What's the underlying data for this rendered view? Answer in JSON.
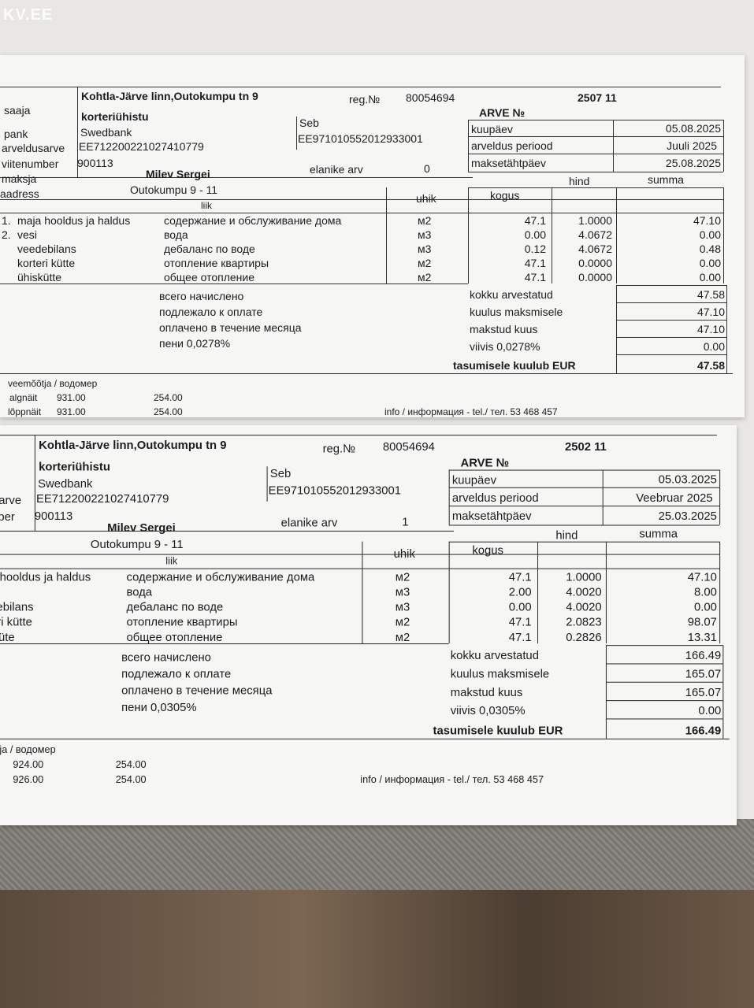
{
  "watermark": "KV.EE",
  "labels": {
    "saaja": "saaja",
    "pank": "pank",
    "arveldusarve": "arveldusarve",
    "viitenumber": "viitenumber",
    "maksja": "maksja",
    "aadress": "aadress",
    "reg": "reg.№",
    "arve": "ARVE №",
    "kuupaev": "kuupäev",
    "periood": "arveldus periood",
    "tahtpaev": "maksetähtpäev",
    "elanike": "elanike arv",
    "liik": "liik",
    "uhik": "uhik",
    "kogus": "kogus",
    "hind": "hind",
    "summa": "summa",
    "ru_total": [
      "всего начислено",
      "подлежало к оплате",
      "оплачено в течение месяца"
    ],
    "et_total": [
      "kokku arvestatud",
      "kuulus maksmisele",
      "makstud kuus"
    ],
    "tasumisele": "tasumisele kuulub EUR",
    "veemootja": "veemõõtja / водомер",
    "algnait": "algnäit",
    "loppnait": "lõppnäit",
    "info": "info / информация - tel./ тел. 53 468 457"
  },
  "invoices": [
    {
      "recipient": "Kohtla-Järve linn,Outokumpu tn 9",
      "recipient2": "korteriühistu",
      "reg_no": "80054694",
      "bank": "Swedbank",
      "account": "EE712200221027410779",
      "bank2": "Seb",
      "account2": "EE971010552012933001",
      "ref": "900113",
      "invoice_no": "2507 11",
      "date": "05.08.2025",
      "period": "Juuli  2025",
      "due": "25.08.2025",
      "payer": "Milev Sergei",
      "residents": "0",
      "address": "Outokumpu 9 - 11",
      "rows": [
        {
          "n": "1.",
          "et": "maja hooldus ja haldus",
          "ru": "содержание и обслуживание дома",
          "unit": "м2",
          "qty": "47.1",
          "price": "1.0000",
          "sum": "47.10"
        },
        {
          "n": "2.",
          "et": "vesi",
          "ru": "вода",
          "unit": "м3",
          "qty": "0.00",
          "price": "4.0672",
          "sum": "0.00"
        },
        {
          "n": "",
          "et": "veedebilans",
          "ru": "дебаланс по воде",
          "unit": "м3",
          "qty": "0.12",
          "price": "4.0672",
          "sum": "0.48"
        },
        {
          "n": "",
          "et": "korteri kütte",
          "ru": "отопление квартиры",
          "unit": "м2",
          "qty": "47.1",
          "price": "0.0000",
          "sum": "0.00"
        },
        {
          "n": "",
          "et": "ühiskütte",
          "ru": "общее отопление",
          "unit": "м2",
          "qty": "47.1",
          "price": "0.0000",
          "sum": "0.00"
        }
      ],
      "peni_ru": "пени 0,0278%",
      "viivis": "viivis 0,0278%",
      "totals": [
        "47.58",
        "47.10",
        "47.10",
        "0.00"
      ],
      "to_pay": "47.58",
      "water": {
        "start": [
          "931.00",
          "254.00"
        ],
        "end": [
          "931.00",
          "254.00"
        ]
      }
    },
    {
      "recipient": "Kohtla-Järve linn,Outokumpu tn 9",
      "recipient2": "korteriühistu",
      "reg_no": "80054694",
      "bank": "Swedbank",
      "account": "EE712200221027410779",
      "bank2": "Seb",
      "account2": "EE971010552012933001",
      "ref": "900113",
      "invoice_no": "2502 11",
      "date": "05.03.2025",
      "period": "Veebruar  2025",
      "due": "25.03.2025",
      "payer": "Milev Sergei",
      "residents": "1",
      "address": "Outokumpu 9 - 11",
      "rows": [
        {
          "n": "",
          "et": "maja hooldus ja haldus",
          "ru": "содержание и обслуживание дома",
          "unit": "м2",
          "qty": "47.1",
          "price": "1.0000",
          "sum": "47.10"
        },
        {
          "n": "",
          "et": "vesi",
          "ru": "вода",
          "unit": "м3",
          "qty": "2.00",
          "price": "4.0020",
          "sum": "8.00"
        },
        {
          "n": "",
          "et": "veedebilans",
          "ru": "дебаланс по воде",
          "unit": "м3",
          "qty": "0.00",
          "price": "4.0020",
          "sum": "0.00"
        },
        {
          "n": "",
          "et": "korteri kütte",
          "ru": "отопление квартиры",
          "unit": "м2",
          "qty": "47.1",
          "price": "2.0823",
          "sum": "98.07"
        },
        {
          "n": "",
          "et": "ühisküte",
          "ru": "общее отопление",
          "unit": "м2",
          "qty": "47.1",
          "price": "0.2826",
          "sum": "13.31"
        }
      ],
      "peni_ru": "пени 0,0305%",
      "viivis": "viivis 0,0305%",
      "totals": [
        "166.49",
        "165.07",
        "165.07",
        "0.00"
      ],
      "to_pay": "166.49",
      "water": {
        "start": [
          "924.00",
          "254.00"
        ],
        "end": [
          "926.00",
          "254.00"
        ]
      }
    }
  ]
}
